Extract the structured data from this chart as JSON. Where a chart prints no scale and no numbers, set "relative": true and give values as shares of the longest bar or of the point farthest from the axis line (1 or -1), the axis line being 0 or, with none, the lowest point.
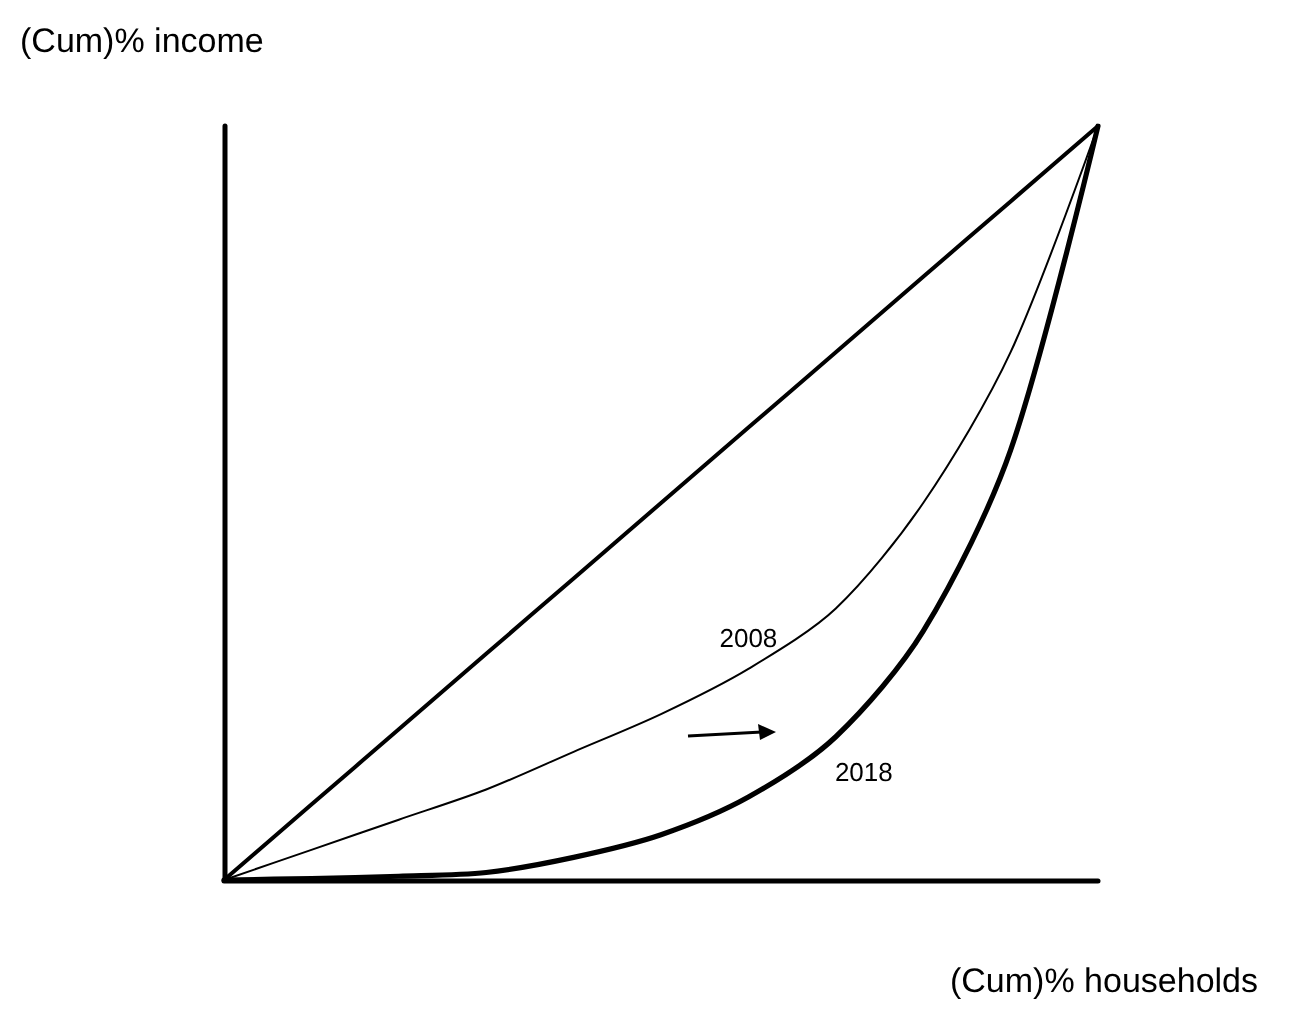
{
  "chart_data": {
    "type": "line",
    "xlabel": "(Cum)% households",
    "ylabel": "(Cum)% income",
    "relative": true,
    "categories": [
      null,
      null,
      null,
      null,
      null,
      null,
      null,
      null,
      null,
      null,
      null
    ],
    "series": [
      {
        "color": "#000000",
        "values": [
          0,
          0.1,
          0.2,
          0.3,
          0.4,
          0.5,
          0.6,
          0.7,
          0.8,
          0.9,
          1
        ]
      },
      {
        "name": "2008",
        "color": "#000000",
        "values": [
          0,
          0.04,
          0.08,
          0.12,
          0.17,
          0.22,
          0.28,
          0.36,
          0.5,
          0.7,
          1
        ]
      },
      {
        "name": "2018",
        "color": "#000000",
        "values": [
          0,
          0.002,
          0.005,
          0.01,
          0.03,
          0.06,
          0.11,
          0.19,
          0.33,
          0.57,
          1
        ]
      }
    ],
    "grid": false,
    "legend": false,
    "marker": "none",
    "line_style": "solid"
  }
}
